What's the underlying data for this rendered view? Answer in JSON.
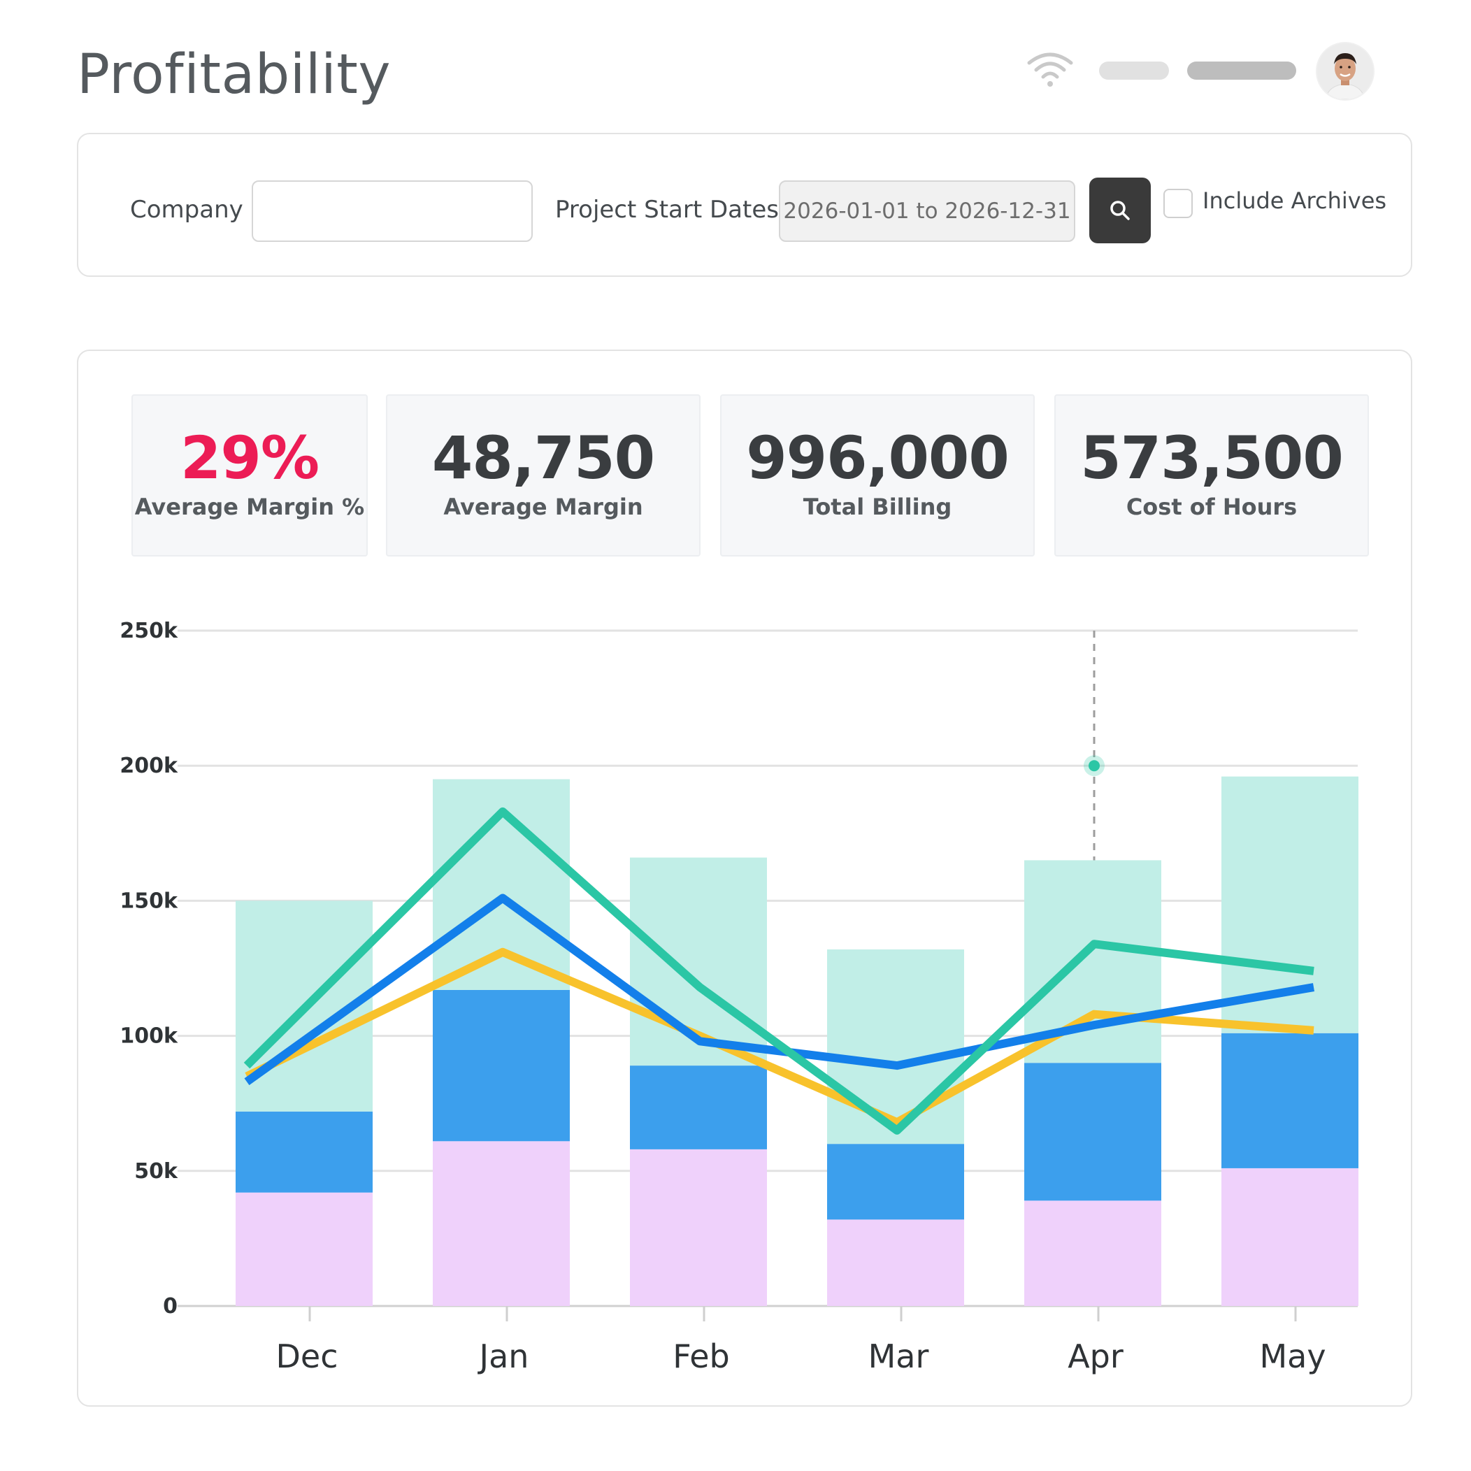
{
  "header": {
    "title": "Profitability",
    "wifi_icon": "wifi-icon",
    "avatar_icon": "user-avatar"
  },
  "filters": {
    "company_label": "Company",
    "company_value": "",
    "dates_label": "Project Start Dates",
    "dates_value": "2026-01-01 to 2026-12-31",
    "search_icon": "search-icon",
    "archives_label": "Include Archives",
    "archives_checked": false
  },
  "kpis": [
    {
      "value": "29%",
      "label": "Average Margin %",
      "accent": "#ec1c55"
    },
    {
      "value": "48,750",
      "label": "Average Margin"
    },
    {
      "value": "996,000",
      "label": "Total Billing"
    },
    {
      "value": "573,500",
      "label": "Cost of Hours"
    }
  ],
  "chart_data": {
    "type": "bar",
    "stacked": true,
    "categories": [
      "Dec",
      "Jan",
      "Feb",
      "Mar",
      "Apr",
      "May"
    ],
    "y_ticks": [
      "0",
      "50k",
      "100k",
      "150k",
      "200k",
      "250k"
    ],
    "ylim": [
      0,
      250000
    ],
    "grid": true,
    "bar_series": [
      {
        "color": "#efd1fb",
        "values": [
          42000,
          61000,
          58000,
          32000,
          39000,
          51000
        ]
      },
      {
        "color": "#3c9fed",
        "values": [
          30000,
          56000,
          31000,
          28000,
          51000,
          50000
        ]
      },
      {
        "color": "#c1eee7",
        "values": [
          78000,
          78000,
          77000,
          72000,
          75000,
          95000
        ]
      }
    ],
    "line_series": [
      {
        "color": "#f8c22c",
        "values": [
          85000,
          131000,
          100000,
          68000,
          108000,
          102000
        ]
      },
      {
        "color": "#137fea",
        "values": [
          83000,
          151000,
          98000,
          89000,
          104000,
          118000
        ]
      },
      {
        "color": "#2bc6a5",
        "values": [
          89000,
          183000,
          118000,
          65000,
          134000,
          124000
        ]
      }
    ],
    "hover": {
      "category": "Apr",
      "value": 200000,
      "color": "#2bc6a5"
    }
  }
}
